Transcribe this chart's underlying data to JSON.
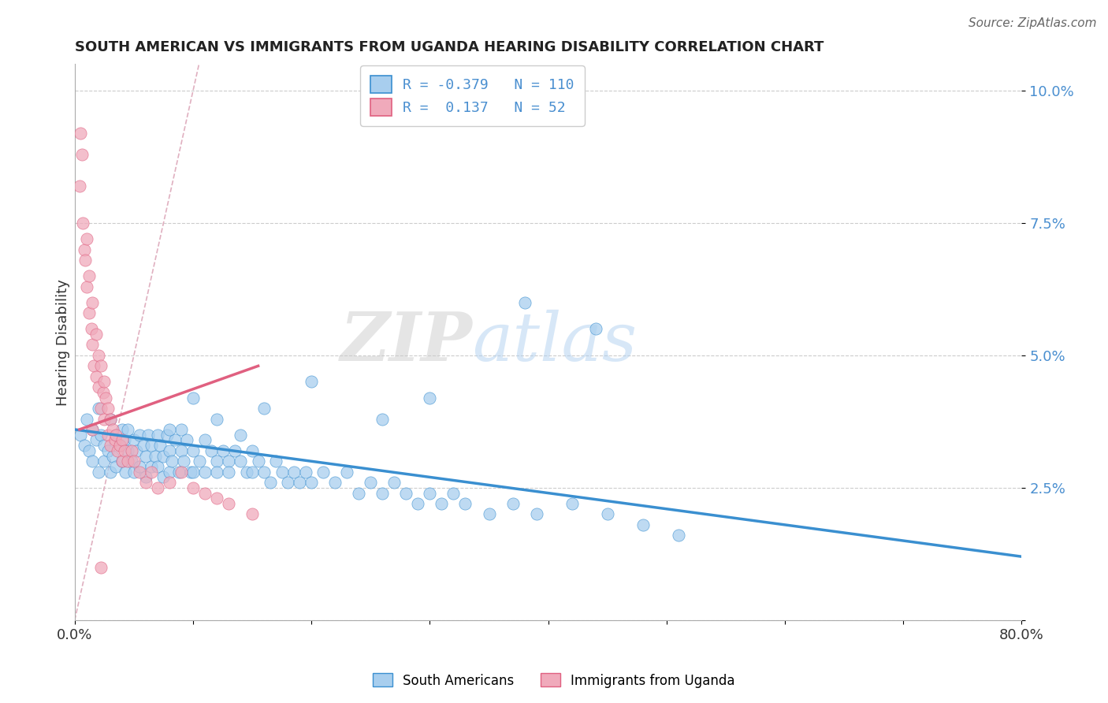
{
  "title": "SOUTH AMERICAN VS IMMIGRANTS FROM UGANDA HEARING DISABILITY CORRELATION CHART",
  "source": "Source: ZipAtlas.com",
  "ylabel": "Hearing Disability",
  "xlim": [
    0.0,
    0.8
  ],
  "ylim": [
    0.0,
    0.105
  ],
  "x_ticks": [
    0.0,
    0.1,
    0.2,
    0.3,
    0.4,
    0.5,
    0.6,
    0.7,
    0.8
  ],
  "x_tick_labels": [
    "0.0%",
    "",
    "",
    "",
    "",
    "",
    "",
    "",
    "80.0%"
  ],
  "y_ticks": [
    0.0,
    0.025,
    0.05,
    0.075,
    0.1
  ],
  "y_tick_labels": [
    "",
    "2.5%",
    "5.0%",
    "7.5%",
    "10.0%"
  ],
  "legend_r1": "-0.379",
  "legend_n1": "110",
  "legend_r2": "0.137",
  "legend_n2": "52",
  "color_blue": "#A8CEEE",
  "color_pink": "#F0AABB",
  "color_blue_line": "#3A8FD0",
  "color_pink_line": "#E06080",
  "color_diagonal": "#E0B0C0",
  "watermark_zip": "ZIP",
  "watermark_atlas": "atlas",
  "legend_label1": "South Americans",
  "legend_label2": "Immigrants from Uganda",
  "blue_scatter_x": [
    0.005,
    0.008,
    0.01,
    0.012,
    0.015,
    0.015,
    0.018,
    0.02,
    0.02,
    0.022,
    0.025,
    0.025,
    0.028,
    0.03,
    0.03,
    0.032,
    0.035,
    0.035,
    0.038,
    0.04,
    0.04,
    0.042,
    0.043,
    0.045,
    0.045,
    0.048,
    0.05,
    0.05,
    0.052,
    0.055,
    0.055,
    0.058,
    0.06,
    0.06,
    0.062,
    0.065,
    0.065,
    0.068,
    0.07,
    0.07,
    0.072,
    0.075,
    0.075,
    0.078,
    0.08,
    0.08,
    0.082,
    0.085,
    0.088,
    0.09,
    0.09,
    0.092,
    0.095,
    0.098,
    0.1,
    0.1,
    0.105,
    0.11,
    0.11,
    0.115,
    0.12,
    0.12,
    0.125,
    0.13,
    0.13,
    0.135,
    0.14,
    0.145,
    0.15,
    0.15,
    0.155,
    0.16,
    0.165,
    0.17,
    0.175,
    0.18,
    0.185,
    0.19,
    0.195,
    0.2,
    0.21,
    0.22,
    0.23,
    0.24,
    0.25,
    0.26,
    0.27,
    0.28,
    0.29,
    0.3,
    0.31,
    0.32,
    0.33,
    0.35,
    0.37,
    0.39,
    0.42,
    0.45,
    0.48,
    0.51,
    0.38,
    0.44,
    0.3,
    0.26,
    0.2,
    0.16,
    0.14,
    0.12,
    0.1,
    0.08
  ],
  "blue_scatter_y": [
    0.035,
    0.033,
    0.038,
    0.032,
    0.036,
    0.03,
    0.034,
    0.04,
    0.028,
    0.035,
    0.033,
    0.03,
    0.032,
    0.038,
    0.028,
    0.031,
    0.035,
    0.029,
    0.033,
    0.036,
    0.03,
    0.034,
    0.028,
    0.032,
    0.036,
    0.03,
    0.034,
    0.028,
    0.032,
    0.035,
    0.029,
    0.033,
    0.031,
    0.027,
    0.035,
    0.029,
    0.033,
    0.031,
    0.035,
    0.029,
    0.033,
    0.031,
    0.027,
    0.035,
    0.032,
    0.028,
    0.03,
    0.034,
    0.028,
    0.032,
    0.036,
    0.03,
    0.034,
    0.028,
    0.032,
    0.028,
    0.03,
    0.034,
    0.028,
    0.032,
    0.03,
    0.028,
    0.032,
    0.03,
    0.028,
    0.032,
    0.03,
    0.028,
    0.032,
    0.028,
    0.03,
    0.028,
    0.026,
    0.03,
    0.028,
    0.026,
    0.028,
    0.026,
    0.028,
    0.026,
    0.028,
    0.026,
    0.028,
    0.024,
    0.026,
    0.024,
    0.026,
    0.024,
    0.022,
    0.024,
    0.022,
    0.024,
    0.022,
    0.02,
    0.022,
    0.02,
    0.022,
    0.02,
    0.018,
    0.016,
    0.06,
    0.055,
    0.042,
    0.038,
    0.045,
    0.04,
    0.035,
    0.038,
    0.042,
    0.036
  ],
  "pink_scatter_x": [
    0.004,
    0.005,
    0.006,
    0.007,
    0.008,
    0.009,
    0.01,
    0.01,
    0.012,
    0.012,
    0.014,
    0.015,
    0.015,
    0.016,
    0.018,
    0.018,
    0.02,
    0.02,
    0.022,
    0.022,
    0.024,
    0.025,
    0.025,
    0.026,
    0.028,
    0.028,
    0.03,
    0.03,
    0.032,
    0.034,
    0.035,
    0.036,
    0.038,
    0.04,
    0.04,
    0.042,
    0.045,
    0.048,
    0.05,
    0.055,
    0.06,
    0.065,
    0.07,
    0.08,
    0.09,
    0.1,
    0.11,
    0.12,
    0.13,
    0.15,
    0.015,
    0.022
  ],
  "pink_scatter_y": [
    0.082,
    0.092,
    0.088,
    0.075,
    0.07,
    0.068,
    0.072,
    0.063,
    0.065,
    0.058,
    0.055,
    0.06,
    0.052,
    0.048,
    0.054,
    0.046,
    0.05,
    0.044,
    0.048,
    0.04,
    0.043,
    0.045,
    0.038,
    0.042,
    0.04,
    0.035,
    0.038,
    0.033,
    0.036,
    0.034,
    0.035,
    0.032,
    0.033,
    0.034,
    0.03,
    0.032,
    0.03,
    0.032,
    0.03,
    0.028,
    0.026,
    0.028,
    0.025,
    0.026,
    0.028,
    0.025,
    0.024,
    0.023,
    0.022,
    0.02,
    0.036,
    0.01
  ],
  "blue_trendline_x": [
    0.0,
    0.8
  ],
  "blue_trendline_y": [
    0.036,
    0.012
  ],
  "pink_trendline_x": [
    0.004,
    0.155
  ],
  "pink_trendline_y": [
    0.036,
    0.048
  ]
}
